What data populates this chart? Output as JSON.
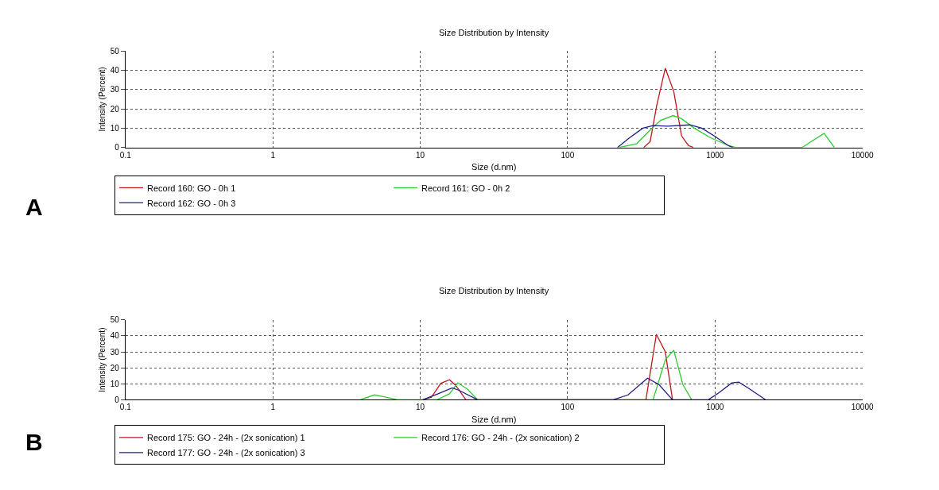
{
  "chart_data": [
    {
      "type": "line",
      "title": "Size Distribution by Intensity",
      "xlabel": "Size (d.nm)",
      "ylabel": "Intensity (Percent)",
      "log": "x",
      "xlim": [
        0.1,
        10000
      ],
      "xticks": [
        0.1,
        1,
        10,
        100,
        1000,
        10000
      ],
      "ylim": [
        0,
        50
      ],
      "yticks": [
        0,
        10,
        20,
        30,
        40,
        50
      ],
      "grid": true,
      "line_style": "solid",
      "legend": "bottom",
      "annotations": [
        "A"
      ],
      "series": [
        {
          "name": "Record 160: GO - 0h 1",
          "color": "#c0141c",
          "x": [
            328,
            363,
            403,
            460,
            525,
            593,
            660,
            713
          ],
          "values": [
            0,
            3,
            22,
            41,
            29,
            6,
            1,
            0
          ]
        },
        {
          "name": "Record 161: GO - 0h 2",
          "color": "#2ecc2e",
          "x": [
            224,
            295,
            363,
            427,
            520,
            589,
            724,
            933,
            1230,
            1380,
            3900,
            5500,
            6450
          ],
          "values": [
            0,
            2,
            9,
            14,
            16.5,
            15,
            10,
            5,
            1,
            0,
            0,
            7.3,
            0
          ]
        },
        {
          "name": "Record 162: GO - 0h 3",
          "color": "#1c1c8c",
          "x": [
            218,
            263,
            324,
            380,
            479,
            676,
            813,
            1000,
            1230,
            1320
          ],
          "values": [
            0,
            5,
            10,
            11.3,
            11,
            11.7,
            10,
            5.7,
            1,
            0
          ]
        }
      ]
    },
    {
      "type": "line",
      "title": "Size Distribution by Intensity",
      "xlabel": "Size (d.nm)",
      "ylabel": "Intensity (Percent)",
      "log": "x",
      "xlim": [
        0.1,
        10000
      ],
      "xticks": [
        0.1,
        1,
        10,
        100,
        1000,
        10000
      ],
      "ylim": [
        0,
        50
      ],
      "yticks": [
        0,
        10,
        20,
        30,
        40,
        50
      ],
      "grid": true,
      "line_style": "solid",
      "legend": "bottom",
      "annotations": [
        "B"
      ],
      "series": [
        {
          "name": "Record 175: GO - 24h - (2x sonication) 1",
          "color": "#c0141c",
          "x": [
            10.4,
            11.9,
            13.8,
            15.8,
            17.4,
            20.4,
            340,
            400,
            460,
            515
          ],
          "values": [
            0,
            1.5,
            10.3,
            12.5,
            9,
            0,
            0,
            41,
            30,
            0
          ]
        },
        {
          "name": "Record 176: GO - 24h - (2x sonication) 2",
          "color": "#2ecc2e",
          "x": [
            3.9,
            4.9,
            5.6,
            7,
            13,
            15.8,
            18,
            20.9,
            24.5,
            380,
            460,
            525,
            605,
            695
          ],
          "values": [
            0,
            3,
            2,
            0,
            0,
            3.7,
            10.6,
            6.6,
            0,
            0,
            25,
            31,
            9.5,
            0
          ]
        },
        {
          "name": "Record 177: GO - 24h - (2x sonication) 3",
          "color": "#1c1c8c",
          "x": [
            10.4,
            13.2,
            16.5,
            18.2,
            24.5,
            204,
            257,
            348,
            417,
            515,
            900,
            1050,
            1300,
            1450,
            1700,
            2200
          ],
          "values": [
            0,
            3.7,
            7.4,
            6,
            0,
            0,
            3,
            13.5,
            9.5,
            0,
            0,
            4,
            10.5,
            11,
            7,
            0
          ]
        }
      ]
    }
  ]
}
